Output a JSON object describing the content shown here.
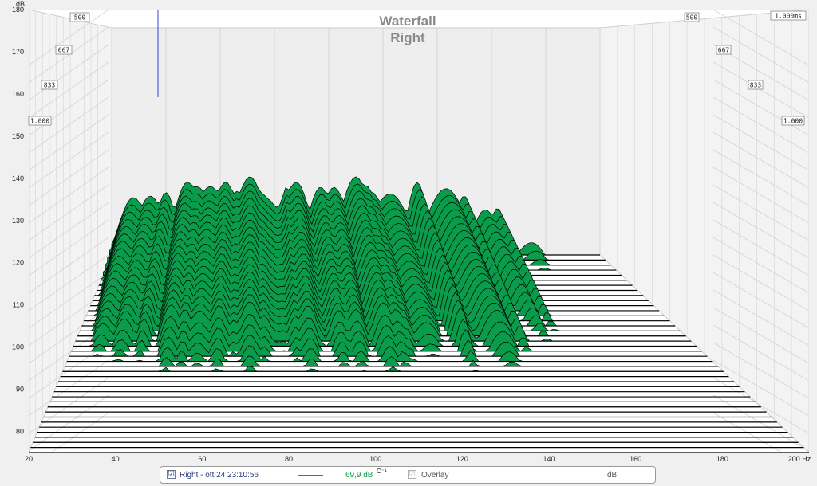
{
  "chart_data": {
    "type": "waterfall",
    "title": "Waterfall",
    "subtitle": "Right",
    "y_unit_label": "dB",
    "x_unit_label": "Hz",
    "x_ticks": [
      "20",
      "40",
      "60",
      "80",
      "100",
      "120",
      "140",
      "160",
      "180",
      "200 Hz"
    ],
    "y_ticks": [
      "80",
      "90",
      "100",
      "110",
      "120",
      "130",
      "140",
      "150",
      "160",
      "170",
      "180"
    ],
    "ylim": [
      75,
      180
    ],
    "xlim": [
      20,
      200
    ],
    "time_labels": [
      "500",
      "667",
      "833",
      "1.000",
      "500",
      "667",
      "833",
      "1.000",
      "1.000ms"
    ],
    "slice_count": 40,
    "colors": {
      "fill": "#0a9b4b",
      "outline": "#000000",
      "floor": "#ffffff"
    }
  },
  "legend": {
    "series_checked": "☑",
    "series_label": "Right - ott 24 23:10:56",
    "series_color": "#12994c",
    "value": "69,9 dB",
    "value_suffix": "C⁻¹",
    "overlay_checked": "☑",
    "overlay_label": "Overlay",
    "unit": "dB"
  }
}
